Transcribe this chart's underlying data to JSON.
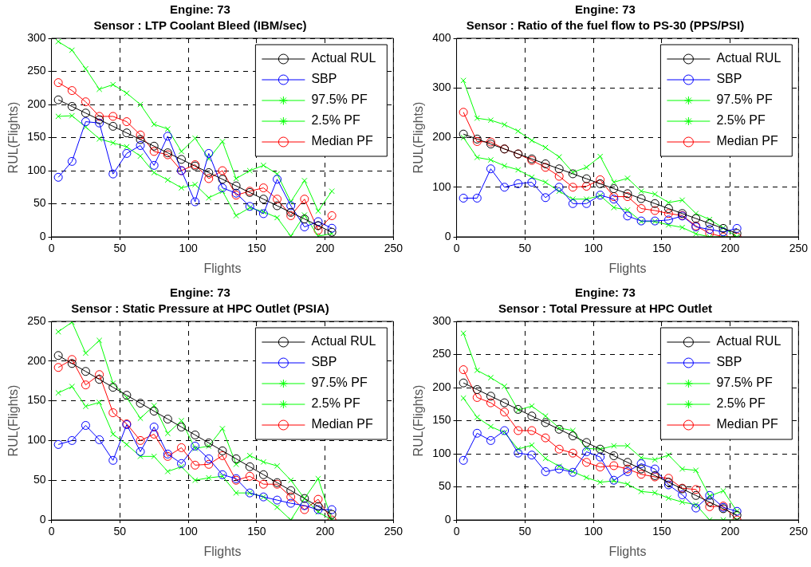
{
  "chart_data": [
    {
      "type": "line",
      "title": "Engine: 73",
      "subtitle": "Sensor : LTP Coolant Bleed (IBM/sec)",
      "xlabel": "Flights",
      "ylabel": "RUL(Flights)",
      "x": [
        5,
        15,
        25,
        35,
        45,
        55,
        65,
        75,
        85,
        95,
        105,
        115,
        125,
        135,
        145,
        155,
        165,
        175,
        185,
        195,
        205
      ],
      "xlim": [
        0,
        250
      ],
      "xticks": [
        0,
        50,
        100,
        150,
        200,
        250
      ],
      "ylim": [
        0,
        300
      ],
      "yticks": [
        0,
        50,
        100,
        150,
        200,
        250,
        300
      ],
      "grid": true,
      "legend": "top right",
      "line_style": "solid",
      "series": [
        {
          "name": "Actual RUL",
          "color": "#000000",
          "marker": "circle",
          "values": [
            207,
            197,
            187,
            177,
            167,
            157,
            147,
            137,
            127,
            117,
            107,
            97,
            87,
            77,
            67,
            57,
            47,
            37,
            27,
            17,
            7
          ]
        },
        {
          "name": "SBP",
          "color": "#0000ff",
          "marker": "circle",
          "values": [
            90,
            114,
            174,
            172,
            95,
            126,
            138,
            108,
            152,
            100,
            53,
            126,
            74,
            66,
            46,
            35,
            87,
            47,
            15,
            23,
            13
          ]
        },
        {
          "name": "97.5% PF",
          "color": "#00ff00",
          "marker": "cross",
          "values": [
            295,
            282,
            254,
            223,
            230,
            217,
            200,
            170,
            163,
            129,
            149,
            118,
            144,
            88,
            100,
            108,
            95,
            53,
            85,
            39,
            69
          ]
        },
        {
          "name": "2.5% PF",
          "color": "#00ff00",
          "marker": "cross",
          "values": [
            182,
            183,
            166,
            148,
            142,
            136,
            122,
            97,
            86,
            74,
            79,
            59,
            69,
            32,
            44,
            38,
            29,
            1,
            33,
            1,
            5
          ]
        },
        {
          "name": "Median PF",
          "color": "#ff0000",
          "marker": "circle",
          "values": [
            233,
            221,
            204,
            182,
            182,
            174,
            154,
            129,
            124,
            100,
            109,
            88,
            100,
            63,
            69,
            74,
            57,
            32,
            57,
            10,
            32
          ]
        }
      ]
    },
    {
      "type": "line",
      "title": "Engine: 73",
      "subtitle": "Sensor : Ratio of the fuel flow to PS-30 (PPS/PSI)",
      "xlabel": "Flights",
      "ylabel": "RUL(Flights)",
      "x": [
        5,
        15,
        25,
        35,
        45,
        55,
        65,
        75,
        85,
        95,
        105,
        115,
        125,
        135,
        145,
        155,
        165,
        175,
        185,
        195,
        205
      ],
      "xlim": [
        0,
        250
      ],
      "xticks": [
        0,
        50,
        100,
        150,
        200,
        250
      ],
      "ylim": [
        0,
        400
      ],
      "yticks": [
        0,
        100,
        200,
        300,
        400
      ],
      "grid": true,
      "legend": "top right",
      "line_style": "solid",
      "series": [
        {
          "name": "Actual RUL",
          "color": "#000000",
          "marker": "circle",
          "values": [
            207,
            197,
            187,
            177,
            167,
            157,
            147,
            137,
            127,
            117,
            107,
            97,
            87,
            77,
            67,
            57,
            47,
            37,
            27,
            17,
            7
          ]
        },
        {
          "name": "SBP",
          "color": "#0000ff",
          "marker": "circle",
          "values": [
            78,
            78,
            137,
            100,
            107,
            110,
            79,
            100,
            67,
            67,
            84,
            76,
            42,
            32,
            32,
            34,
            42,
            20,
            15,
            10,
            17
          ]
        },
        {
          "name": "97.5% PF",
          "color": "#00ff00",
          "marker": "cross",
          "values": [
            315,
            239,
            235,
            226,
            213,
            194,
            180,
            161,
            130,
            140,
            162,
            110,
            118,
            92,
            86,
            69,
            74,
            47,
            35,
            18,
            0
          ]
        },
        {
          "name": "2.5% PF",
          "color": "#00ff00",
          "marker": "cross",
          "values": [
            200,
            160,
            155,
            143,
            135,
            120,
            110,
            92,
            76,
            76,
            83,
            59,
            54,
            31,
            31,
            24,
            19,
            6,
            0,
            0,
            0
          ]
        },
        {
          "name": "Median PF",
          "color": "#ff0000",
          "marker": "circle",
          "values": [
            251,
            192,
            191,
            177,
            167,
            154,
            140,
            122,
            100,
            102,
            115,
            81,
            81,
            57,
            53,
            47,
            43,
            22,
            7,
            0,
            0
          ]
        }
      ]
    },
    {
      "type": "line",
      "title": "Engine: 73",
      "subtitle": "Sensor : Static Pressure at HPC Outlet (PSIA)",
      "xlabel": "Flights",
      "ylabel": "RUL(Flights)",
      "x": [
        5,
        15,
        25,
        35,
        45,
        55,
        65,
        75,
        85,
        95,
        105,
        115,
        125,
        135,
        145,
        155,
        165,
        175,
        185,
        195,
        205
      ],
      "xlim": [
        0,
        250
      ],
      "xticks": [
        0,
        50,
        100,
        150,
        200,
        250
      ],
      "ylim": [
        0,
        250
      ],
      "yticks": [
        0,
        50,
        100,
        150,
        200,
        250
      ],
      "grid": true,
      "legend": "top right",
      "line_style": "solid",
      "series": [
        {
          "name": "Actual RUL",
          "color": "#000000",
          "marker": "circle",
          "values": [
            207,
            197,
            187,
            177,
            167,
            157,
            147,
            137,
            127,
            117,
            107,
            97,
            87,
            77,
            67,
            57,
            47,
            37,
            27,
            17,
            7
          ]
        },
        {
          "name": "SBP",
          "color": "#0000ff",
          "marker": "circle",
          "values": [
            95,
            100,
            119,
            101,
            75,
            120,
            86,
            117,
            83,
            71,
            93,
            77,
            57,
            52,
            34,
            29,
            25,
            21,
            18,
            13,
            13
          ]
        },
        {
          "name": "97.5% PF",
          "color": "#00ff00",
          "marker": "cross",
          "values": [
            237,
            249,
            210,
            226,
            172,
            154,
            128,
            144,
            109,
            125,
            90,
            93,
            115,
            70,
            81,
            73,
            68,
            50,
            27,
            52,
            0
          ]
        },
        {
          "name": "2.5% PF",
          "color": "#00ff00",
          "marker": "cross",
          "values": [
            160,
            168,
            143,
            148,
            108,
            95,
            80,
            80,
            61,
            67,
            50,
            53,
            55,
            34,
            34,
            29,
            16,
            0,
            27,
            10,
            0
          ]
        },
        {
          "name": "Median PF",
          "color": "#ff0000",
          "marker": "circle",
          "values": [
            192,
            202,
            170,
            183,
            135,
            121,
            100,
            108,
            80,
            91,
            69,
            70,
            81,
            50,
            55,
            45,
            45,
            29,
            13,
            26,
            0
          ]
        }
      ]
    },
    {
      "type": "line",
      "title": "Engine: 73",
      "subtitle": "Sensor : Total Pressure at HPC Outlet",
      "xlabel": "Flights",
      "ylabel": "RUL(Flights)",
      "x": [
        5,
        15,
        25,
        35,
        45,
        55,
        65,
        75,
        85,
        95,
        105,
        115,
        125,
        135,
        145,
        155,
        165,
        175,
        185,
        195,
        205
      ],
      "xlim": [
        0,
        250
      ],
      "xticks": [
        0,
        50,
        100,
        150,
        200,
        250
      ],
      "ylim": [
        0,
        300
      ],
      "yticks": [
        0,
        50,
        100,
        150,
        200,
        250,
        300
      ],
      "grid": true,
      "legend": "top right",
      "line_style": "solid",
      "series": [
        {
          "name": "Actual RUL",
          "color": "#000000",
          "marker": "circle",
          "values": [
            207,
            197,
            187,
            177,
            167,
            157,
            147,
            137,
            127,
            117,
            107,
            97,
            87,
            77,
            67,
            57,
            47,
            37,
            27,
            17,
            7
          ]
        },
        {
          "name": "SBP",
          "color": "#0000ff",
          "marker": "circle",
          "values": [
            90,
            131,
            120,
            135,
            101,
            98,
            73,
            77,
            72,
            103,
            95,
            60,
            73,
            85,
            77,
            53,
            38,
            18,
            37,
            19,
            13
          ]
        },
        {
          "name": "97.5% PF",
          "color": "#00ff00",
          "marker": "cross",
          "values": [
            282,
            226,
            215,
            202,
            166,
            172,
            157,
            139,
            135,
            108,
            107,
            112,
            112,
            94,
            91,
            98,
            77,
            75,
            36,
            44,
            13
          ]
        },
        {
          "name": "2.5% PF",
          "color": "#00ff00",
          "marker": "cross",
          "values": [
            184,
            155,
            141,
            132,
            107,
            113,
            93,
            81,
            73,
            64,
            57,
            59,
            54,
            43,
            41,
            33,
            27,
            23,
            0,
            0,
            0
          ]
        },
        {
          "name": "Median PF",
          "color": "#ff0000",
          "marker": "circle",
          "values": [
            227,
            185,
            177,
            163,
            135,
            135,
            124,
            107,
            101,
            87,
            80,
            82,
            77,
            69,
            65,
            63,
            48,
            46,
            20,
            21,
            0
          ]
        }
      ]
    }
  ]
}
